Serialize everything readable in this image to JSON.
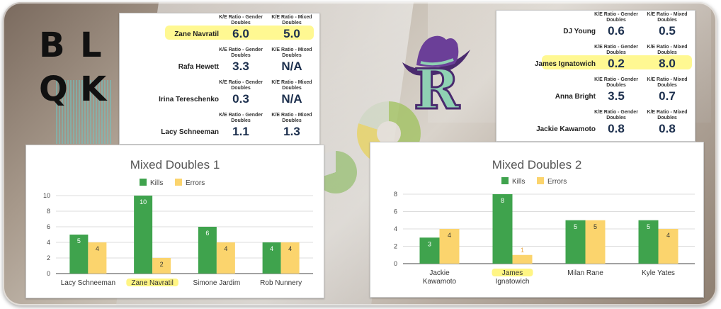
{
  "logos": {
    "left": [
      "B",
      "L",
      "Q",
      "K"
    ],
    "right": "R"
  },
  "headers": {
    "gender": "K/E Ratio - Gender Doubles",
    "mixed": "K/E Ratio - Mixed Doubles"
  },
  "kes_left": [
    {
      "name": "Zane Navratil",
      "gender": "6.0",
      "mixed": "5.0",
      "highlight": true
    },
    {
      "name": "Rafa Hewett",
      "gender": "3.3",
      "mixed": "N/A",
      "highlight": false
    },
    {
      "name": "Irina Tereschenko",
      "gender": "0.3",
      "mixed": "N/A",
      "highlight": false
    },
    {
      "name": "Lacy Schneeman",
      "gender": "1.1",
      "mixed": "1.3",
      "highlight": false
    }
  ],
  "kes_right": [
    {
      "name": "DJ Young",
      "gender": "0.6",
      "mixed": "0.5",
      "highlight": false
    },
    {
      "name": "James Ignatowich",
      "gender": "0.2",
      "mixed": "8.0",
      "highlight": true
    },
    {
      "name": "Anna Bright",
      "gender": "3.5",
      "mixed": "0.7",
      "highlight": false
    },
    {
      "name": "Jackie Kawamoto",
      "gender": "0.8",
      "mixed": "0.8",
      "highlight": false
    }
  ],
  "colors": {
    "kills": "#3fa34d",
    "errors": "#fbd46d",
    "highlight": "#fff36e",
    "ratio": "#1c2f4d"
  },
  "chart_data": [
    {
      "type": "bar",
      "title": "Mixed Doubles 1",
      "categories": [
        "Lacy Schneeman",
        "Zane Navratil",
        "Simone Jardim",
        "Rob Nunnery"
      ],
      "highlight_category": "Zane Navratil",
      "series": [
        {
          "name": "Kills",
          "values": [
            5,
            10,
            6,
            4
          ]
        },
        {
          "name": "Errors",
          "values": [
            4,
            2,
            4,
            4
          ]
        }
      ],
      "ylim": [
        0,
        10
      ],
      "yticks": [
        0,
        2,
        4,
        6,
        8,
        10
      ],
      "grid": true,
      "legend": "top"
    },
    {
      "type": "bar",
      "title": "Mixed Doubles 2",
      "categories": [
        [
          "Jackie",
          "Kawamoto"
        ],
        [
          "James",
          "Ignatowich"
        ],
        [
          "Milan Rane"
        ],
        [
          "Kyle Yates"
        ]
      ],
      "highlight_category": "James Ignatowich",
      "series": [
        {
          "name": "Kills",
          "values": [
            3,
            8,
            5,
            5
          ]
        },
        {
          "name": "Errors",
          "values": [
            4,
            1,
            5,
            4
          ]
        }
      ],
      "ylim": [
        0,
        8
      ],
      "yticks": [
        0,
        2,
        4,
        6,
        8
      ],
      "grid": true,
      "legend": "top"
    }
  ]
}
